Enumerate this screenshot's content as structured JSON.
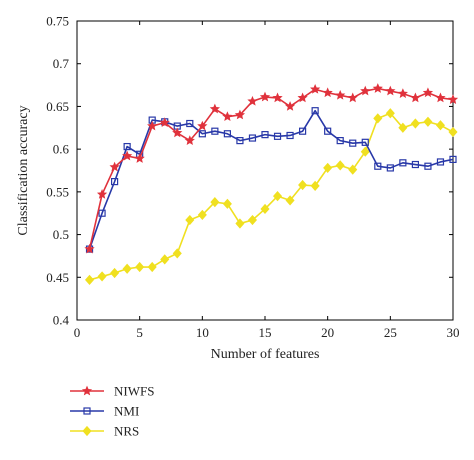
{
  "chart_data": {
    "type": "line",
    "xlabel": "Number of features",
    "ylabel": "Classification accuracy",
    "xlim": [
      0,
      30
    ],
    "ylim": [
      0.4,
      0.75
    ],
    "xticks": [
      0,
      5,
      10,
      15,
      20,
      25,
      30
    ],
    "yticks": [
      0.4,
      0.45,
      0.5,
      0.55,
      0.6,
      0.65,
      0.7,
      0.75
    ],
    "x": [
      1,
      2,
      3,
      4,
      5,
      6,
      7,
      8,
      9,
      10,
      11,
      12,
      13,
      14,
      15,
      16,
      17,
      18,
      19,
      20,
      21,
      22,
      23,
      24,
      25,
      26,
      27,
      28,
      29,
      30
    ],
    "legend_position": "bottom-left, below plot",
    "series": [
      {
        "name": "NIWFS",
        "color": "#e0323c",
        "marker": "star",
        "values": [
          0.483,
          0.547,
          0.579,
          0.592,
          0.589,
          0.627,
          0.631,
          0.619,
          0.61,
          0.627,
          0.647,
          0.638,
          0.64,
          0.656,
          0.661,
          0.66,
          0.65,
          0.66,
          0.67,
          0.666,
          0.663,
          0.66,
          0.668,
          0.671,
          0.668,
          0.665,
          0.66,
          0.666,
          0.66,
          0.658
        ]
      },
      {
        "name": "NMI",
        "color": "#2838a8",
        "marker": "square",
        "values": [
          0.483,
          0.525,
          0.562,
          0.603,
          0.594,
          0.634,
          0.632,
          0.627,
          0.63,
          0.618,
          0.621,
          0.618,
          0.61,
          0.613,
          0.617,
          0.615,
          0.616,
          0.621,
          0.645,
          0.621,
          0.61,
          0.607,
          0.608,
          0.58,
          0.578,
          0.584,
          0.582,
          0.58,
          0.585,
          0.588
        ]
      },
      {
        "name": "NRS",
        "color": "#f0e020",
        "marker": "diamond",
        "values": [
          0.447,
          0.451,
          0.455,
          0.46,
          0.462,
          0.462,
          0.471,
          0.478,
          0.517,
          0.523,
          0.538,
          0.536,
          0.513,
          0.517,
          0.53,
          0.545,
          0.54,
          0.558,
          0.557,
          0.578,
          0.581,
          0.576,
          0.597,
          0.636,
          0.642,
          0.625,
          0.63,
          0.632,
          0.628,
          0.62
        ]
      }
    ]
  }
}
